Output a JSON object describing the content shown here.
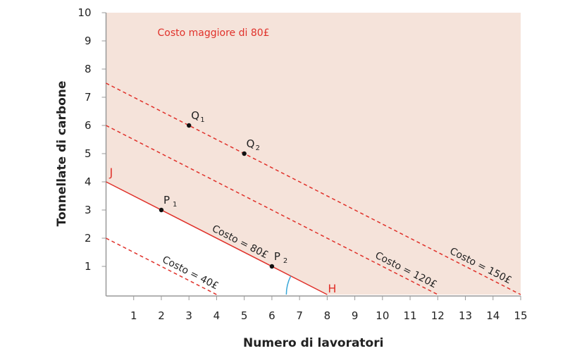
{
  "chart_data": {
    "type": "line",
    "xlabel": "Numero di lavoratori",
    "ylabel": "Tonnellate di carbone",
    "xlim": [
      0,
      15
    ],
    "ylim": [
      0,
      10
    ],
    "xticks": [
      1,
      2,
      3,
      4,
      5,
      6,
      7,
      8,
      9,
      10,
      11,
      12,
      13,
      14,
      15
    ],
    "yticks": [
      1,
      2,
      3,
      4,
      5,
      6,
      7,
      8,
      9,
      10
    ],
    "grid": false,
    "region_label": "Costo maggiore di 80£",
    "colors": {
      "line": "#e0312a",
      "region": "#f5e3da",
      "angle": "#3aa8d8",
      "axis": "#999999"
    },
    "series": [
      {
        "name": "Costo = 40£",
        "style": "dashed",
        "points": [
          [
            0,
            2
          ],
          [
            4,
            0
          ]
        ]
      },
      {
        "name": "Costo = 80£",
        "style": "solid",
        "points": [
          [
            0,
            4
          ],
          [
            8,
            0
          ]
        ]
      },
      {
        "name": "Costo = 120£",
        "style": "dashed",
        "points": [
          [
            0,
            6
          ],
          [
            12,
            0
          ]
        ]
      },
      {
        "name": "Costo = 150£",
        "style": "dashed",
        "points": [
          [
            0,
            7.5
          ],
          [
            15,
            0
          ]
        ]
      }
    ],
    "endpoints": [
      {
        "label": "J",
        "x": 0,
        "y": 4
      },
      {
        "label": "H",
        "x": 8,
        "y": 0
      }
    ],
    "points": [
      {
        "label": "Q",
        "sub": "1",
        "x": 3,
        "y": 6
      },
      {
        "label": "Q",
        "sub": "2",
        "x": 5,
        "y": 5
      },
      {
        "label": "P",
        "sub": "1",
        "x": 2,
        "y": 3
      },
      {
        "label": "P",
        "sub": "2",
        "x": 6,
        "y": 1
      }
    ]
  }
}
